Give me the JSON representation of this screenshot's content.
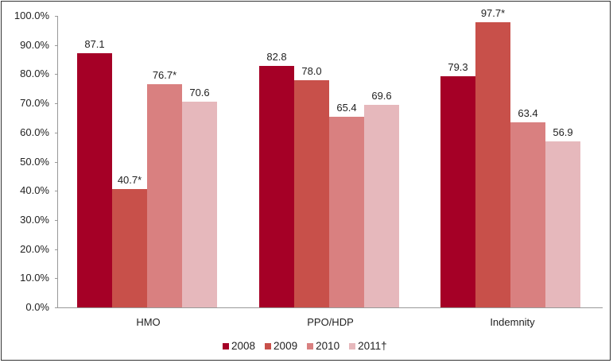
{
  "chart_data": {
    "type": "bar",
    "title": "",
    "xlabel": "",
    "ylabel": "",
    "ylim": [
      0,
      100
    ],
    "y_ticks": [
      "0.0%",
      "10.0%",
      "20.0%",
      "30.0%",
      "40.0%",
      "50.0%",
      "60.0%",
      "70.0%",
      "80.0%",
      "90.0%",
      "100.0%"
    ],
    "categories": [
      "HMO",
      "PPO/HDP",
      "Indemnity"
    ],
    "series": [
      {
        "name": "2008",
        "color": "#a50026",
        "values": [
          87.1,
          82.8,
          79.3
        ],
        "labels": [
          "87.1",
          "82.8",
          "79.3"
        ]
      },
      {
        "name": "2009",
        "color": "#c8504a",
        "values": [
          40.7,
          78.0,
          97.7
        ],
        "labels": [
          "40.7*",
          "78.0",
          "97.7*"
        ]
      },
      {
        "name": "2010",
        "color": "#d98080",
        "values": [
          76.7,
          65.4,
          63.4
        ],
        "labels": [
          "76.7*",
          "65.4",
          "63.4"
        ]
      },
      {
        "name": "2011†",
        "color": "#e6b8bc",
        "values": [
          70.6,
          69.6,
          56.9
        ],
        "labels": [
          "70.6",
          "69.6",
          "56.9"
        ]
      }
    ],
    "legend_position": "bottom",
    "grid": false
  }
}
